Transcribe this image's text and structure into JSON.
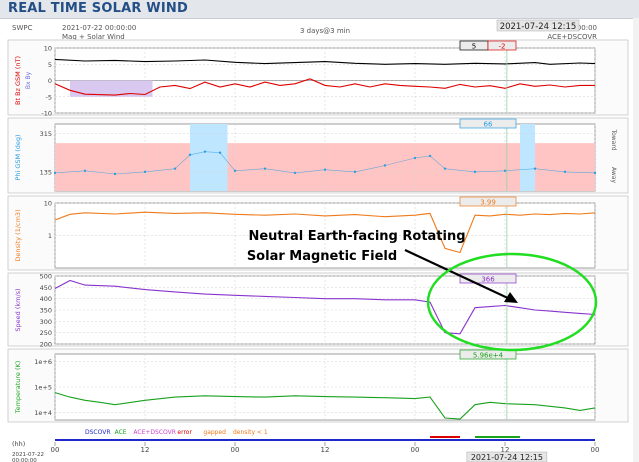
{
  "page": {
    "title": "REAL TIME SOLAR WIND"
  },
  "header": {
    "source": "SWPC",
    "start": "2021-07-22 00:00:00",
    "subtitle": "Mag + Solar Wind",
    "span": "3 days@3 min",
    "current": "2021-07-24 12:15",
    "end": "2021-07-25 00:00:00",
    "spacecraft": "ACE+DSCOVR"
  },
  "colors": {
    "bt": "#000000",
    "bz": "#dd0000",
    "phi": "#2b9de0",
    "phiBand": "#ffc4c4",
    "phiHi": "#bfe6ff",
    "density": "#ee7a1c",
    "speed": "#8833cc",
    "temp": "#19a21c",
    "grid": "#d2d2d2",
    "axis": "#777777",
    "blue": "#1f28c8",
    "annotation": "#22dd22"
  },
  "chart_data": [
    {
      "type": "line",
      "panel": "magnetic-field",
      "ylabel": "Bt Bz GSM (nT)",
      "ylabel_extra": "Bx  By",
      "ylim": [
        -10,
        10
      ],
      "yticks": [
        10,
        5,
        0,
        -5,
        -10
      ],
      "series": [
        {
          "name": "Bt",
          "points": [
            [
              0,
              6.5
            ],
            [
              4,
              6
            ],
            [
              8,
              6.2
            ],
            [
              12,
              5.8
            ],
            [
              16,
              6
            ],
            [
              20,
              6.3
            ],
            [
              24,
              5.6
            ],
            [
              28,
              5.2
            ],
            [
              32,
              5.5
            ],
            [
              36,
              5.8
            ],
            [
              40,
              5.3
            ],
            [
              44,
              5
            ],
            [
              48,
              5.2
            ],
            [
              52,
              5
            ],
            [
              56,
              5.3
            ],
            [
              60,
              5.1
            ],
            [
              64,
              5.5
            ],
            [
              66,
              5
            ],
            [
              70,
              5.4
            ],
            [
              72,
              5.2
            ]
          ]
        },
        {
          "name": "Bz",
          "points": [
            [
              0,
              -1
            ],
            [
              2,
              -3
            ],
            [
              4,
              -4.2
            ],
            [
              8,
              -4.5
            ],
            [
              10,
              -4
            ],
            [
              12,
              -4.3
            ],
            [
              14,
              -2
            ],
            [
              16,
              -1.5
            ],
            [
              18,
              -2.5
            ],
            [
              20,
              -0.5
            ],
            [
              22,
              -2
            ],
            [
              24,
              -1
            ],
            [
              26,
              -2
            ],
            [
              28,
              -0.5
            ],
            [
              30,
              -1.5
            ],
            [
              32,
              -1
            ],
            [
              34,
              0.5
            ],
            [
              36,
              -1.5
            ],
            [
              38,
              -2
            ],
            [
              40,
              -1
            ],
            [
              42,
              -2
            ],
            [
              44,
              -1
            ],
            [
              46,
              -1.5
            ],
            [
              48,
              -1.8
            ],
            [
              50,
              -2
            ],
            [
              52,
              -2.4
            ],
            [
              54,
              -1.2
            ],
            [
              56,
              -2
            ],
            [
              58,
              -1.6
            ],
            [
              60,
              -2.4
            ],
            [
              62,
              -1
            ],
            [
              64,
              -1.8
            ],
            [
              66,
              -1.4
            ],
            [
              68,
              -2
            ],
            [
              70,
              -1.5
            ],
            [
              72,
              -1.5
            ]
          ]
        }
      ],
      "boxes": [
        {
          "label": "5",
          "color": "#000000"
        },
        {
          "label": "-2",
          "color": "#dd0000"
        }
      ]
    },
    {
      "type": "scatter",
      "panel": "phi",
      "ylabel": "Phi GSM (deg)",
      "ylim": [
        45,
        360
      ],
      "yticks": [
        315,
        135
      ],
      "right_labels": [
        "Toward",
        "Away"
      ],
      "shade_bands": [
        [
          0,
          72
        ]
      ],
      "highlight_bands": [
        [
          18,
          23
        ],
        [
          62,
          64
        ]
      ],
      "series": [
        {
          "name": "Phi",
          "points": [
            [
              0,
              130
            ],
            [
              4,
              140
            ],
            [
              8,
              125
            ],
            [
              12,
              135
            ],
            [
              16,
              150
            ],
            [
              18,
              215
            ],
            [
              20,
              230
            ],
            [
              22,
              225
            ],
            [
              24,
              140
            ],
            [
              28,
              150
            ],
            [
              32,
              130
            ],
            [
              36,
              145
            ],
            [
              40,
              135
            ],
            [
              44,
              165
            ],
            [
              48,
              200
            ],
            [
              50,
              210
            ],
            [
              52,
              150
            ],
            [
              56,
              135
            ],
            [
              60,
              140
            ],
            [
              64,
              150
            ],
            [
              68,
              135
            ],
            [
              72,
              130
            ]
          ]
        }
      ],
      "boxes": [
        {
          "label": "66",
          "color": "#2b9de0"
        }
      ]
    },
    {
      "type": "line",
      "panel": "density",
      "ylabel": "Density (1/cm3)",
      "ylog": true,
      "ylim": [
        0.1,
        10
      ],
      "yticks": [
        "10",
        "1"
      ],
      "series": [
        {
          "name": "Density",
          "points": [
            [
              0,
              3
            ],
            [
              2,
              4.5
            ],
            [
              4,
              5
            ],
            [
              8,
              4.6
            ],
            [
              12,
              5.2
            ],
            [
              16,
              4.8
            ],
            [
              20,
              5
            ],
            [
              24,
              4.5
            ],
            [
              28,
              4.2
            ],
            [
              32,
              4.6
            ],
            [
              36,
              4
            ],
            [
              40,
              4.4
            ],
            [
              44,
              3.8
            ],
            [
              48,
              4.2
            ],
            [
              50,
              4.8
            ],
            [
              52,
              0.4
            ],
            [
              54,
              0.3
            ],
            [
              56,
              4.2
            ],
            [
              58,
              4
            ],
            [
              60,
              4.5
            ],
            [
              62,
              4.2
            ],
            [
              64,
              4.6
            ],
            [
              66,
              4.4
            ],
            [
              68,
              4.8
            ],
            [
              70,
              4.6
            ],
            [
              72,
              5
            ]
          ]
        }
      ],
      "boxes": [
        {
          "label": "3.99",
          "color": "#ee7a1c"
        }
      ]
    },
    {
      "type": "line",
      "panel": "speed",
      "ylabel": "Speed (km/s)",
      "ylim": [
        200,
        500
      ],
      "yticks": [
        500,
        450,
        400,
        350,
        300,
        250,
        200
      ],
      "series": [
        {
          "name": "Speed",
          "points": [
            [
              0,
              445
            ],
            [
              2,
              480
            ],
            [
              4,
              460
            ],
            [
              8,
              455
            ],
            [
              12,
              440
            ],
            [
              16,
              430
            ],
            [
              20,
              420
            ],
            [
              24,
              415
            ],
            [
              28,
              410
            ],
            [
              32,
              405
            ],
            [
              36,
              400
            ],
            [
              40,
              400
            ],
            [
              44,
              395
            ],
            [
              48,
              395
            ],
            [
              50,
              385
            ],
            [
              52,
              250
            ],
            [
              54,
              245
            ],
            [
              56,
              360
            ],
            [
              58,
              365
            ],
            [
              60,
              370
            ],
            [
              62,
              360
            ],
            [
              64,
              350
            ],
            [
              66,
              345
            ],
            [
              68,
              340
            ],
            [
              70,
              335
            ],
            [
              72,
              330
            ]
          ]
        }
      ],
      "boxes": [
        {
          "label": "366",
          "color": "#8833cc"
        }
      ]
    },
    {
      "type": "line",
      "panel": "temperature",
      "ylabel": "Temperature (K)",
      "ylog": true,
      "ylim": [
        5000,
        2000000
      ],
      "yticks": [
        "1e+6",
        "1e+5",
        "1e+4"
      ],
      "series": [
        {
          "name": "Temperature",
          "points": [
            [
              0,
              60000
            ],
            [
              2,
              40000
            ],
            [
              4,
              30000
            ],
            [
              6,
              25000
            ],
            [
              8,
              20000
            ],
            [
              12,
              30000
            ],
            [
              16,
              40000
            ],
            [
              20,
              45000
            ],
            [
              24,
              42000
            ],
            [
              28,
              40000
            ],
            [
              32,
              45000
            ],
            [
              36,
              42000
            ],
            [
              40,
              40000
            ],
            [
              44,
              38000
            ],
            [
              48,
              35000
            ],
            [
              50,
              40000
            ],
            [
              52,
              6000
            ],
            [
              54,
              5500
            ],
            [
              56,
              20000
            ],
            [
              58,
              25000
            ],
            [
              60,
              22000
            ],
            [
              64,
              20000
            ],
            [
              68,
              15000
            ],
            [
              70,
              12000
            ],
            [
              72,
              15000
            ]
          ]
        }
      ],
      "boxes": [
        {
          "label": "5.96e+4",
          "color": "#19a21c"
        }
      ]
    }
  ],
  "status": {
    "items": [
      {
        "label": "DSCOVR",
        "color": "#1f28c8"
      },
      {
        "label": "ACE",
        "color": "#19a21c"
      },
      {
        "label": "ACE+DSCOVR",
        "color": "#cc44cc"
      },
      {
        "label": "error",
        "color": "#dd0000"
      },
      {
        "label": "gapped",
        "color": "#ee7a1c"
      },
      {
        "label": "density < 1",
        "color": "#ee7a1c"
      }
    ]
  },
  "xaxis": {
    "unit": "(hh)",
    "ticks": [
      {
        "h": 0,
        "label": "00"
      },
      {
        "h": 12,
        "label": "12"
      },
      {
        "h": 24,
        "label": "00"
      },
      {
        "h": 36,
        "label": "12"
      },
      {
        "h": 48,
        "label": "00"
      },
      {
        "h": 60,
        "label": "12"
      },
      {
        "h": 72,
        "label": "00"
      }
    ],
    "bottom_left_date": "2021-07-22",
    "bottom_left_time": "00:00:00",
    "current_hour": 60.25,
    "current_label": "2021-07-24 12:15"
  },
  "annotation": {
    "line1": "Neutral Earth-facing Rotating",
    "line2": "Solar Magnetic Field"
  }
}
